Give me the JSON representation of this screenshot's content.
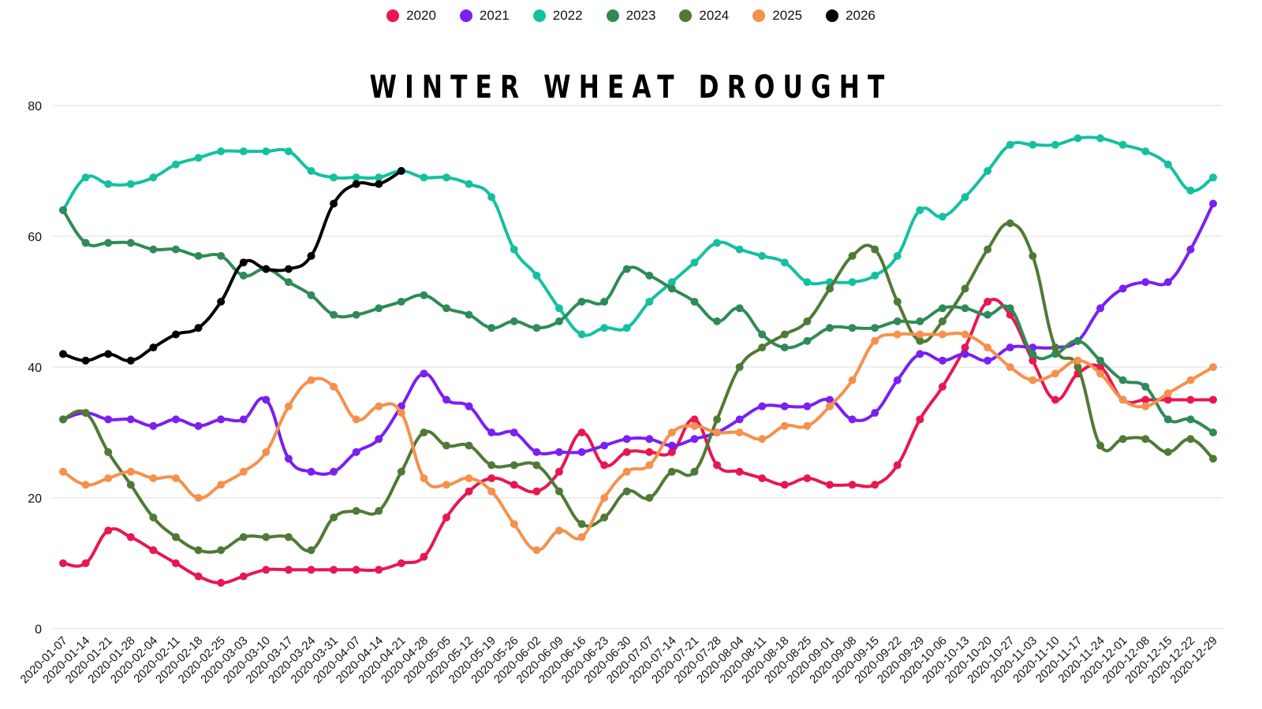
{
  "chart_data": {
    "type": "line",
    "title": "WINTER WHEAT DROUGHT",
    "xlabel": "",
    "ylabel": "",
    "ylim": [
      0,
      80
    ],
    "yticks": [
      0,
      20,
      40,
      60,
      80
    ],
    "grid": true,
    "legend_position": "top",
    "categories": [
      "2020-01-07",
      "2020-01-14",
      "2020-01-21",
      "2020-01-28",
      "2020-02-04",
      "2020-02-11",
      "2020-02-18",
      "2020-02-25",
      "2020-03-03",
      "2020-03-10",
      "2020-03-17",
      "2020-03-24",
      "2020-03-31",
      "2020-04-07",
      "2020-04-14",
      "2020-04-21",
      "2020-04-28",
      "2020-05-05",
      "2020-05-12",
      "2020-05-19",
      "2020-05-26",
      "2020-06-02",
      "2020-06-09",
      "2020-06-16",
      "2020-06-23",
      "2020-06-30",
      "2020-07-07",
      "2020-07-14",
      "2020-07-21",
      "2020-07-28",
      "2020-08-04",
      "2020-08-11",
      "2020-08-18",
      "2020-08-25",
      "2020-09-01",
      "2020-09-08",
      "2020-09-15",
      "2020-09-22",
      "2020-09-29",
      "2020-10-06",
      "2020-10-13",
      "2020-10-20",
      "2020-10-27",
      "2020-11-03",
      "2020-11-10",
      "2020-11-17",
      "2020-11-24",
      "2020-12-01",
      "2020-12-08",
      "2020-12-15",
      "2020-12-22",
      "2020-12-29"
    ],
    "series": [
      {
        "name": "2020",
        "color": "#e8174f",
        "values": [
          10,
          10,
          15,
          14,
          12,
          10,
          8,
          7,
          8,
          9,
          9,
          9,
          9,
          9,
          9,
          10,
          11,
          17,
          21,
          23,
          22,
          21,
          24,
          30,
          25,
          27,
          27,
          27,
          32,
          25,
          24,
          23,
          22,
          23,
          22,
          22,
          22,
          25,
          32,
          37,
          43,
          50,
          48,
          41,
          35,
          39,
          40,
          35,
          35,
          35,
          35,
          35
        ]
      },
      {
        "name": "2021",
        "color": "#7b1ff2",
        "values": [
          32,
          33,
          32,
          32,
          31,
          32,
          31,
          32,
          32,
          35,
          26,
          24,
          24,
          27,
          29,
          34,
          39,
          35,
          34,
          30,
          30,
          27,
          27,
          27,
          28,
          29,
          29,
          28,
          29,
          30,
          32,
          34,
          34,
          34,
          35,
          32,
          33,
          38,
          42,
          41,
          42,
          41,
          43,
          43,
          43,
          44,
          49,
          52,
          53,
          53,
          58,
          65
        ]
      },
      {
        "name": "2022",
        "color": "#13c1a0",
        "values": [
          64,
          69,
          68,
          68,
          69,
          71,
          72,
          73,
          73,
          73,
          73,
          70,
          69,
          69,
          69,
          70,
          69,
          69,
          68,
          66,
          58,
          54,
          49,
          45,
          46,
          46,
          50,
          53,
          56,
          59,
          58,
          57,
          56,
          53,
          53,
          53,
          54,
          57,
          64,
          63,
          66,
          70,
          74,
          74,
          74,
          75,
          75,
          74,
          73,
          71,
          67,
          69
        ]
      },
      {
        "name": "2023",
        "color": "#2e8b57",
        "values": [
          64,
          59,
          59,
          59,
          58,
          58,
          57,
          57,
          54,
          55,
          53,
          51,
          48,
          48,
          49,
          50,
          51,
          49,
          48,
          46,
          47,
          46,
          47,
          50,
          50,
          55,
          54,
          52,
          50,
          47,
          49,
          45,
          43,
          44,
          46,
          46,
          46,
          47,
          47,
          49,
          49,
          48,
          49,
          42,
          42,
          44,
          41,
          38,
          37,
          32,
          32,
          30
        ]
      },
      {
        "name": "2024",
        "color": "#4f7a35",
        "values": [
          32,
          33,
          27,
          22,
          17,
          14,
          12,
          12,
          14,
          14,
          14,
          12,
          17,
          18,
          18,
          24,
          30,
          28,
          28,
          25,
          25,
          25,
          21,
          16,
          17,
          21,
          20,
          24,
          24,
          32,
          40,
          43,
          45,
          47,
          52,
          57,
          58,
          50,
          44,
          47,
          52,
          58,
          62,
          57,
          43,
          40,
          28,
          29,
          29,
          27,
          29,
          26
        ]
      },
      {
        "name": "2025",
        "color": "#f5914c",
        "values": [
          24,
          22,
          23,
          24,
          23,
          23,
          20,
          22,
          24,
          27,
          34,
          38,
          37,
          32,
          34,
          33,
          23,
          22,
          23,
          21,
          16,
          12,
          15,
          14,
          20,
          24,
          25,
          30,
          31,
          30,
          30,
          29,
          31,
          31,
          34,
          38,
          44,
          45,
          45,
          45,
          45,
          43,
          40,
          38,
          39,
          41,
          39,
          35,
          34,
          36,
          38,
          40
        ]
      },
      {
        "name": "2026",
        "color": "#000000",
        "values": [
          42,
          41,
          42,
          41,
          43,
          45,
          46,
          50,
          56,
          55,
          55,
          57,
          65,
          68,
          68,
          70,
          null,
          null,
          null,
          null,
          null,
          null,
          null,
          null,
          null,
          null,
          null,
          null,
          null,
          null,
          null,
          null,
          null,
          null,
          null,
          null,
          null,
          null,
          null,
          null,
          null,
          null,
          null,
          null,
          null,
          null,
          null,
          null,
          null,
          null,
          null,
          null
        ]
      }
    ]
  }
}
